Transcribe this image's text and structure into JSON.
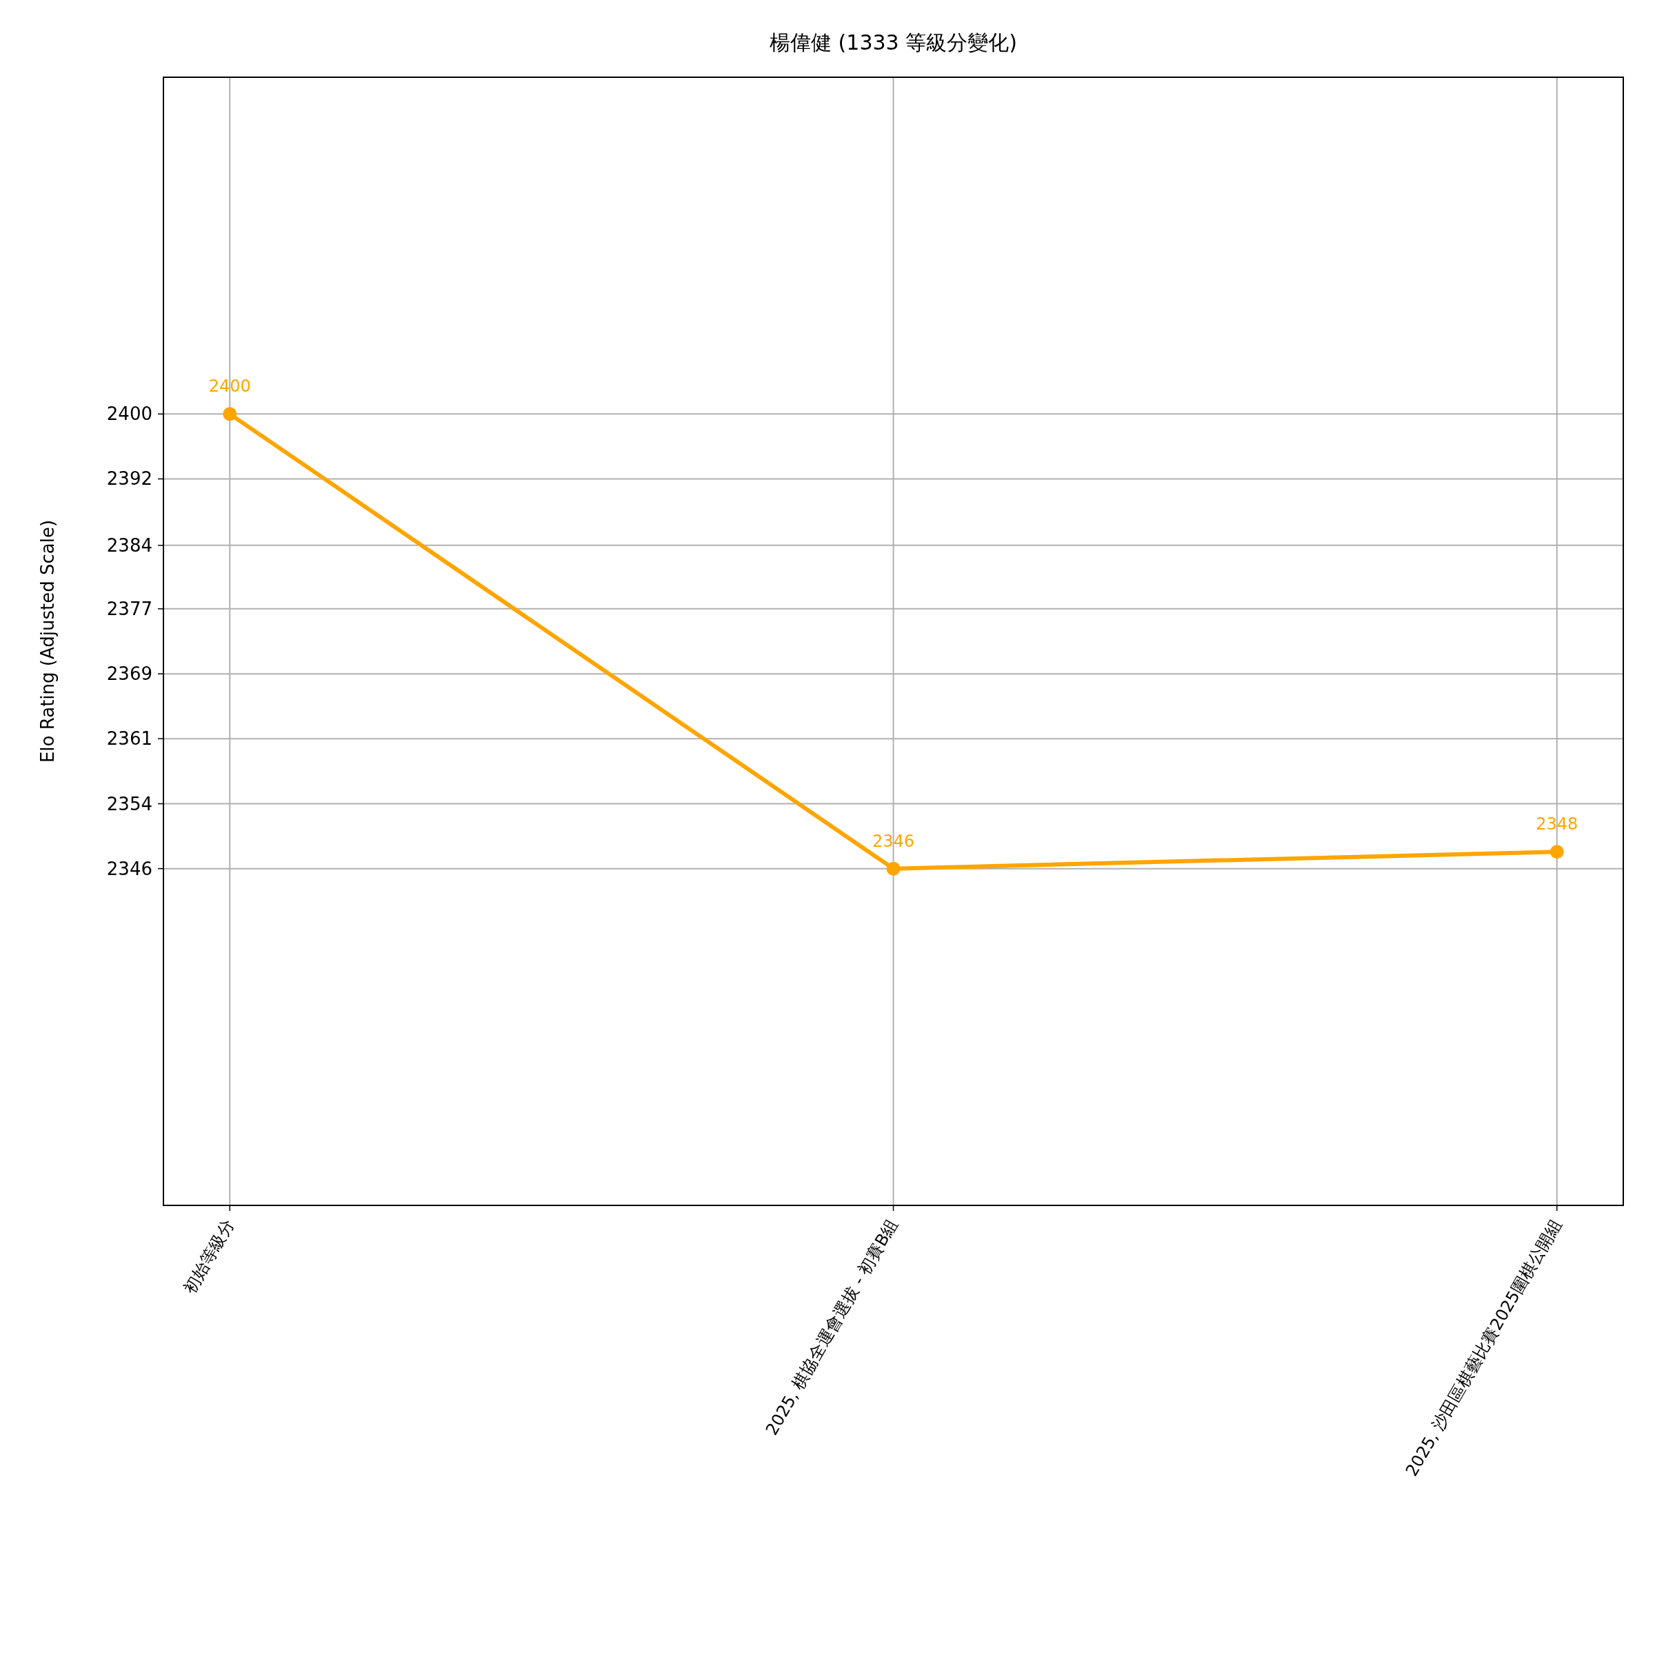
{
  "chart_data": {
    "type": "line",
    "title": "楊偉健 (1333 等級分變化)",
    "ylabel": "Elo Rating (Adjusted Scale)",
    "categories": [
      "初始等級分",
      "2025, 棋協全運會選拔 - 初賽B組",
      "2025, 沙田區棋藝比賽2025圍棋公開組"
    ],
    "series": [
      {
        "color": "#ffa500",
        "values": [
          2400,
          2346,
          2348
        ]
      }
    ],
    "ylim": [
      2306,
      2440
    ],
    "yticks": [
      2346,
      {
        "value": 2353.71,
        "label": "2354"
      },
      {
        "value": 2361.43,
        "label": "2361"
      },
      {
        "value": 2369.14,
        "label": "2369"
      },
      {
        "value": 2376.86,
        "label": "2377"
      },
      {
        "value": 2384.4,
        "label": "2384"
      },
      {
        "value": 2392.29,
        "label": "2392"
      },
      2400
    ],
    "grid": true,
    "marker": "circle",
    "data_labels": true
  }
}
